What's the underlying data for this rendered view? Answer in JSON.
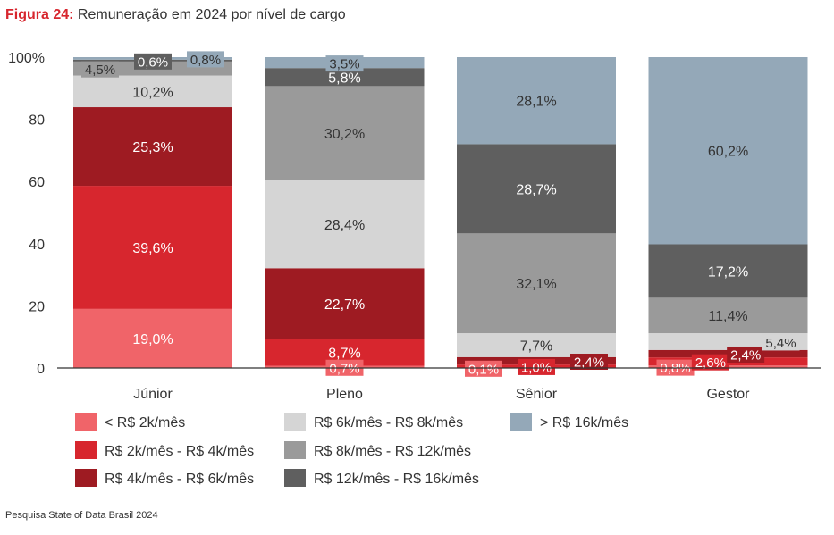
{
  "title": {
    "figure": "Figura 24:",
    "text": " Remuneração em 2024 por nível de cargo"
  },
  "source": "Pesquisa State of Data Brasil 2024",
  "chart_data": {
    "type": "bar",
    "stacked": true,
    "title": "Figura 24: Remuneração em 2024 por nível de cargo",
    "categories": [
      "Júnior",
      "Pleno",
      "Sênior",
      "Gestor"
    ],
    "ylim": [
      0,
      100
    ],
    "ytick_labels": [
      "0",
      "20",
      "40",
      "60",
      "80",
      "100%"
    ],
    "grid": false,
    "legend_position": "bottom",
    "series": [
      {
        "name": "< R$ 2k/mês",
        "color": "#f06469",
        "text_color": "#ffffff",
        "values": [
          19.0,
          0.7,
          0.1,
          0.8
        ],
        "labels": [
          "19,0%",
          "0,7%",
          "0,1%",
          "0,8%"
        ]
      },
      {
        "name": "R$ 2k/mês - R$ 4k/mês",
        "color": "#d7262e",
        "text_color": "#ffffff",
        "values": [
          39.6,
          8.7,
          1.0,
          2.6
        ],
        "labels": [
          "39,6%",
          "8,7%",
          "1,0%",
          "2,6%"
        ]
      },
      {
        "name": "R$ 4k/mês - R$ 6k/mês",
        "color": "#9e1b22",
        "text_color": "#ffffff",
        "values": [
          25.3,
          22.7,
          2.4,
          2.4
        ],
        "labels": [
          "25,3%",
          "22,7%",
          "2,4%",
          "2,4%"
        ]
      },
      {
        "name": "R$ 6k/mês - R$ 8k/mês",
        "color": "#d5d5d5",
        "text_color": "#333333",
        "values": [
          10.2,
          28.4,
          7.7,
          5.4
        ],
        "labels": [
          "10,2%",
          "28,4%",
          "7,7%",
          "5,4%"
        ]
      },
      {
        "name": "R$ 8k/mês - R$ 12k/mês",
        "color": "#9a9a9a",
        "text_color": "#333333",
        "values": [
          4.5,
          30.2,
          32.1,
          11.4
        ],
        "labels": [
          "4,5%",
          "30,2%",
          "32,1%",
          "11,4%"
        ]
      },
      {
        "name": "R$ 12k/mês - R$ 16k/mês",
        "color": "#5f5f5f",
        "text_color": "#ffffff",
        "values": [
          0.6,
          5.8,
          28.7,
          17.2
        ],
        "labels": [
          "0,6%",
          "5,8%",
          "28,7%",
          "17,2%"
        ]
      },
      {
        "name": "> R$ 16k/mês",
        "color": "#94a8b8",
        "text_color": "#333333",
        "values": [
          0.8,
          3.5,
          28.1,
          60.2
        ],
        "labels": [
          "0,8%",
          "3,5%",
          "28,1%",
          "60,2%"
        ]
      }
    ]
  }
}
